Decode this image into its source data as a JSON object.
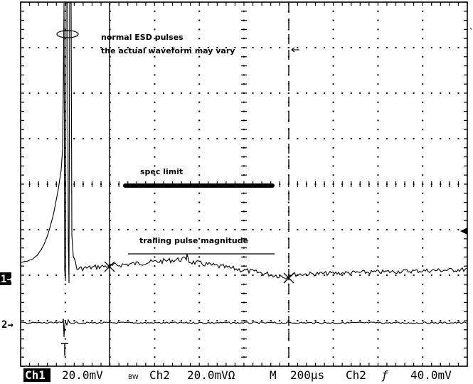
{
  "annotations": {
    "esd_line1": "normal ESD pulses",
    "esd_line2": "the actual waveform may vary",
    "spec_limit": "spec limit",
    "trailing_pulse": "trailing pulse magnitude"
  },
  "markers": {
    "ch1_marker": "1→",
    "ch2_marker": "2→"
  },
  "status_bar": {
    "ch1_label": "Ch1",
    "ch1_scale": "20.0mV",
    "bw_label": "BW",
    "ch2_label": "Ch2",
    "ch2_scale": "20.0mVΩ",
    "timebase_label": "M",
    "timebase_value": "200µs",
    "trigger_source": "Ch2",
    "trigger_slope": "ƒ",
    "trigger_level": "40.0mV"
  },
  "colors": {
    "background": "#ffffff",
    "grid": "#000000",
    "trace": "#000000",
    "badge_bg": "#000000"
  }
}
